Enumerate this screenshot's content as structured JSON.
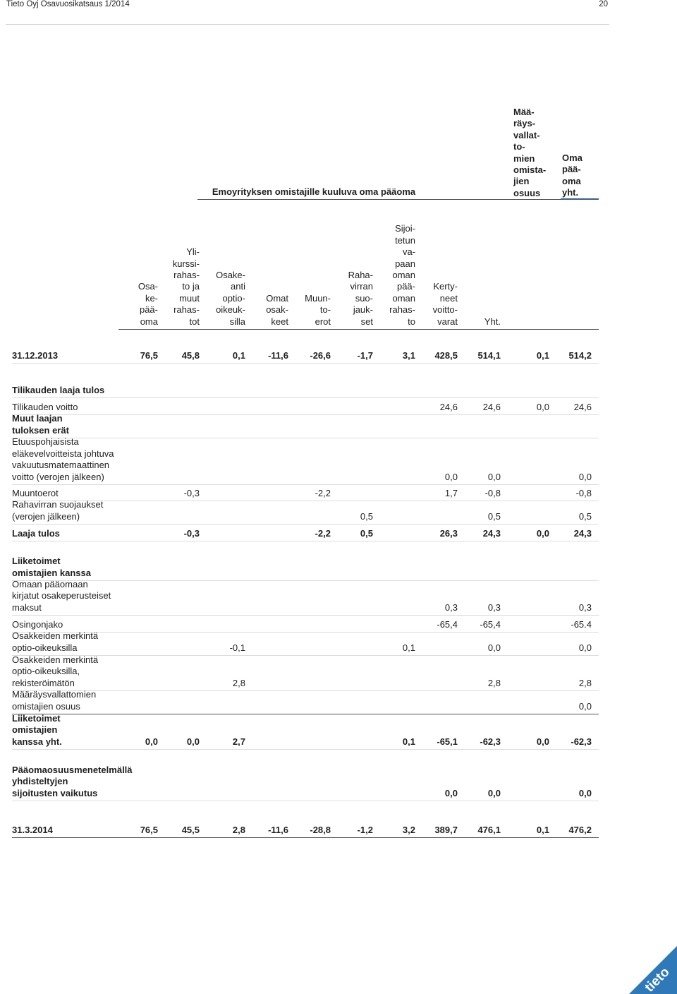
{
  "page": {
    "left": "Tieto Oyj Osavuosikatsaus 1/2014",
    "number": "20"
  },
  "group_title": "Emoyrityksen omistajille kuuluva oma pääoma",
  "minority_header": "Mää-\nräys-\nvallat-\nto-\nmien\nomista-\njien\nosuus",
  "total_header": "Oma\npää-\noma\nyht.",
  "columns": [
    "Osa-\nke-\npää-\noma",
    "Yli-\nkurssi-\nrahas-\nto ja\nmuut\nrahas-\ntot",
    "Osake-\nanti\noptio-\noikeuk-\nsilla",
    "Omat\nosak-\nkeet",
    "Muun-\nto-\nerot",
    "Raha-\nvirran\nsuo-\njauk-\nset",
    "Sijoi-\ntetun\nva-\npaan\noman\npää-\noman\nrahas-\nto",
    "Kerty-\nneet\nvoitto-\nvarat",
    "Yht."
  ],
  "rows": [
    {
      "label": "31.12.2013",
      "values": [
        "76,5",
        "45,8",
        "0,1",
        "-11,6",
        "-26,6",
        "-1,7",
        "3,1",
        "428,5",
        "514,1",
        "0,1",
        "514,2"
      ]
    },
    {
      "label": "Tilikauden laaja tulos",
      "values": [
        "",
        "",
        "",
        "",
        "",
        "",
        "",
        "",
        "",
        "",
        ""
      ]
    },
    {
      "label": "Tilikauden voitto",
      "values": [
        "",
        "",
        "",
        "",
        "",
        "",
        "",
        "24,6",
        "24,6",
        "0,0",
        "24,6"
      ]
    },
    {
      "label": "Muut laajan\ntuloksen erät",
      "values": [
        "",
        "",
        "",
        "",
        "",
        "",
        "",
        "",
        "",
        "",
        ""
      ]
    },
    {
      "label": "Etuuspohjaisista\neläkevelvoitteista johtuva\nvakuutusmatemaattinen\nvoitto (verojen jälkeen)",
      "values": [
        "",
        "",
        "",
        "",
        "",
        "",
        "",
        "0,0",
        "0,0",
        "",
        "0,0"
      ]
    },
    {
      "label": "Muuntoerot",
      "values": [
        "",
        "-0,3",
        "",
        "",
        "-2,2",
        "",
        "",
        "1,7",
        "-0,8",
        "",
        "-0,8"
      ]
    },
    {
      "label": "Rahavirran suojaukset\n(verojen jälkeen)",
      "values": [
        "",
        "",
        "",
        "",
        "",
        "0,5",
        "",
        "",
        "0,5",
        "",
        "0,5"
      ]
    },
    {
      "label": "Laaja tulos",
      "values": [
        "",
        "-0,3",
        "",
        "",
        "-2,2",
        "0,5",
        "",
        "26,3",
        "24,3",
        "0,0",
        "24,3"
      ]
    },
    {
      "label": "Liiketoimet\nomistajien kanssa",
      "values": [
        "",
        "",
        "",
        "",
        "",
        "",
        "",
        "",
        "",
        "",
        ""
      ]
    },
    {
      "label": "Omaan pääomaan\nkirjatut osakeperusteiset\nmaksut",
      "values": [
        "",
        "",
        "",
        "",
        "",
        "",
        "",
        "0,3",
        "0,3",
        "",
        "0,3"
      ]
    },
    {
      "label": "Osingonjako",
      "values": [
        "",
        "",
        "",
        "",
        "",
        "",
        "",
        "-65,4",
        "-65,4",
        "",
        "-65.4"
      ]
    },
    {
      "label": "Osakkeiden merkintä\noptio-oikeuksilla",
      "values": [
        "",
        "",
        "-0,1",
        "",
        "",
        "",
        "0,1",
        "",
        "0,0",
        "",
        "0,0"
      ]
    },
    {
      "label": "Osakkeiden merkintä\noptio-oikeuksilla,\nrekisteröimätön",
      "values": [
        "",
        "",
        "2,8",
        "",
        "",
        "",
        "",
        "",
        "2,8",
        "",
        "2,8"
      ]
    },
    {
      "label": "Määräysvallattomien\nomistajien osuus",
      "values": [
        "",
        "",
        "",
        "",
        "",
        "",
        "",
        "",
        "",
        "",
        "0,0"
      ]
    },
    {
      "label": "Liiketoimet\nomistajien\nkanssa yht.",
      "values": [
        "0,0",
        "0,0",
        "2,7",
        "",
        "",
        "",
        "0,1",
        "-65,1",
        "-62,3",
        "0,0",
        "-62,3"
      ]
    },
    {
      "label": "Pääomaosuusmenetelmällä\nyhdisteltyjen\nsijoitusten vaikutus",
      "values": [
        "",
        "",
        "",
        "",
        "",
        "",
        "",
        "0,0",
        "0,0",
        "",
        "0,0"
      ]
    },
    {
      "label": "31.3.2014",
      "values": [
        "76,5",
        "45,5",
        "2,8",
        "-11,6",
        "-28,8",
        "-1,2",
        "3,2",
        "389,7",
        "476,1",
        "0,1",
        "476,2"
      ]
    }
  ],
  "logo_text": "tieto",
  "colors": {
    "rule_dark": "#444444",
    "rule_light": "#dcdcdc",
    "accent_blue": "#2f79b9"
  }
}
